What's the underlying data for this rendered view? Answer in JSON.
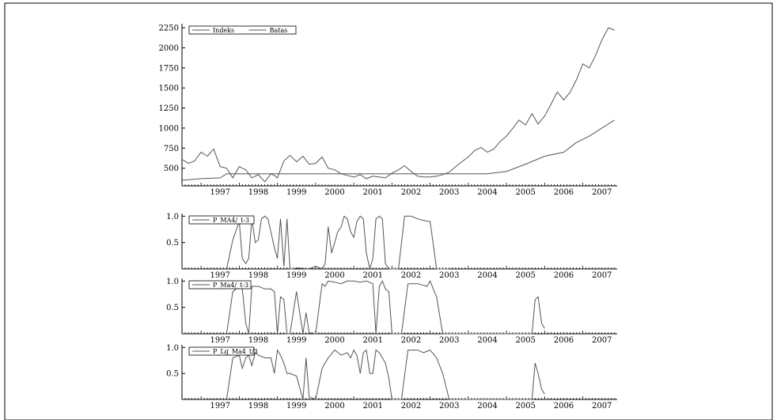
{
  "colors": {
    "line": "#555555",
    "axis": "#000000",
    "background": "#ffffff"
  },
  "chart_data": [
    {
      "type": "line",
      "title": "",
      "xlabel": "",
      "ylabel": "",
      "xlim": [
        1996.5,
        2007.9
      ],
      "ylim": [
        280,
        2300
      ],
      "yticks": [
        500,
        750,
        1000,
        1250,
        1500,
        1750,
        2000,
        2250
      ],
      "xticks": [
        "1997",
        "1998",
        "1999",
        "2000",
        "2001",
        "2002",
        "2003",
        "2004",
        "2005",
        "2006",
        "2007"
      ],
      "legend": "top-left",
      "series": [
        {
          "name": "Indeks",
          "x": [
            1996.5,
            1996.67,
            1996.83,
            1997.0,
            1997.17,
            1997.33,
            1997.5,
            1997.67,
            1997.83,
            1998.0,
            1998.08,
            1998.17,
            1998.33,
            1998.5,
            1998.67,
            1998.83,
            1998.92,
            1999.0,
            1999.17,
            1999.33,
            1999.5,
            1999.67,
            1999.83,
            2000.0,
            2000.17,
            2000.33,
            2000.5,
            2000.67,
            2000.83,
            2001.0,
            2001.17,
            2001.33,
            2001.5,
            2001.67,
            2001.83,
            2002.0,
            2002.17,
            2002.33,
            2002.5,
            2002.67,
            2002.83,
            2003.0,
            2003.17,
            2003.33,
            2003.5,
            2003.67,
            2003.83,
            2004.0,
            2004.17,
            2004.33,
            2004.5,
            2004.67,
            2004.83,
            2005.0,
            2005.17,
            2005.33,
            2005.5,
            2005.67,
            2005.83,
            2006.0,
            2006.17,
            2006.33,
            2006.5,
            2006.67,
            2006.83,
            2007.0,
            2007.17,
            2007.33,
            2007.5,
            2007.67,
            2007.83
          ],
          "values": [
            610,
            560,
            590,
            700,
            650,
            740,
            520,
            500,
            380,
            520,
            500,
            480,
            380,
            420,
            330,
            430,
            410,
            380,
            590,
            660,
            580,
            650,
            550,
            560,
            640,
            500,
            480,
            430,
            410,
            390,
            420,
            370,
            400,
            390,
            380,
            440,
            480,
            530,
            460,
            400,
            390,
            390,
            400,
            420,
            450,
            520,
            580,
            640,
            720,
            760,
            700,
            740,
            830,
            900,
            1000,
            1100,
            1040,
            1180,
            1050,
            1150,
            1300,
            1450,
            1350,
            1450,
            1600,
            1800,
            1750,
            1900,
            2100,
            2250,
            2220
          ]
        },
        {
          "name": "Batas",
          "x": [
            1996.5,
            1997.0,
            1997.5,
            1997.67,
            2003.5,
            2004.5,
            2005.0,
            2005.5,
            2006.0,
            2006.5,
            2006.83,
            2007.17,
            2007.5,
            2007.83
          ],
          "values": [
            350,
            370,
            380,
            430,
            430,
            430,
            460,
            550,
            650,
            700,
            820,
            900,
            1000,
            1100
          ]
        }
      ]
    },
    {
      "type": "line",
      "title": "",
      "xlabel": "",
      "ylabel": "",
      "xlim": [
        1996.5,
        2007.9
      ],
      "ylim": [
        0,
        1.05
      ],
      "yticks": [
        "0.5",
        "1.0"
      ],
      "xticks": [
        "1997",
        "1998",
        "1999",
        "2000",
        "2001",
        "2002",
        "2003",
        "2004",
        "2005",
        "2006",
        "2007"
      ],
      "legend": "top-left",
      "series": [
        {
          "name": "P_MA4/_t-3",
          "x": [
            1997.67,
            1997.83,
            1998.0,
            1998.08,
            1998.17,
            1998.25,
            1998.33,
            1998.42,
            1998.5,
            1998.58,
            1998.67,
            1998.75,
            1998.83,
            1998.92,
            1999.0,
            1999.08,
            1999.17,
            1999.25,
            1999.33,
            1999.42,
            1999.5,
            1999.83,
            2000.0,
            2000.17,
            2000.25,
            2000.33,
            2000.42,
            2000.5,
            2000.58,
            2000.67,
            2000.75,
            2000.83,
            2000.92,
            2001.0,
            2001.08,
            2001.17,
            2001.25,
            2001.33,
            2001.42,
            2001.5,
            2001.58,
            2001.67,
            2001.75,
            2001.83,
            2001.92,
            2002.0,
            2002.17,
            2002.33,
            2002.5,
            2002.67,
            2002.83,
            2003.0,
            2003.17,
            2003.33,
            2003.5
          ],
          "values": [
            0,
            0.55,
            0.9,
            0.2,
            0.1,
            0.2,
            0.95,
            0.5,
            0.55,
            0.95,
            1.0,
            0.95,
            0.7,
            0.4,
            0.2,
            0.95,
            0.05,
            0.95,
            0,
            0,
            0.02,
            0,
            0.05,
            0,
            0.1,
            0.8,
            0.3,
            0.5,
            0.7,
            0.8,
            1.0,
            0.95,
            0.7,
            0.6,
            0.9,
            1.0,
            0.95,
            0.3,
            0,
            0.2,
            0.95,
            1.0,
            0.95,
            0.1,
            0,
            0,
            0,
            1.0,
            1.0,
            0.95,
            0.92,
            0.9,
            0,
            0,
            0
          ]
        }
      ]
    },
    {
      "type": "line",
      "title": "",
      "xlabel": "",
      "ylabel": "",
      "xlim": [
        1996.5,
        2007.9
      ],
      "ylim": [
        0,
        1.05
      ],
      "yticks": [
        "0.5",
        "1.0"
      ],
      "xticks": [
        "1997",
        "1998",
        "1999",
        "2000",
        "2001",
        "2002",
        "2003",
        "2004",
        "2005",
        "2006",
        "2007"
      ],
      "legend": "top-left",
      "series": [
        {
          "name": "P_Ma4/_t-3",
          "x": [
            1997.67,
            1997.83,
            1998.0,
            1998.08,
            1998.17,
            1998.25,
            1998.33,
            1998.5,
            1998.67,
            1998.83,
            1998.92,
            1999.0,
            1999.08,
            1999.17,
            1999.25,
            1999.33,
            1999.5,
            1999.67,
            1999.75,
            1999.83,
            2000.0,
            2000.17,
            2000.25,
            2000.33,
            2000.5,
            2000.67,
            2000.83,
            2001.0,
            2001.17,
            2001.33,
            2001.5,
            2001.58,
            2001.67,
            2001.75,
            2001.83,
            2001.92,
            2002.0,
            2002.25,
            2002.42,
            2002.5,
            2002.67,
            2002.83,
            2002.92,
            2003.0,
            2003.08,
            2003.17,
            2003.33,
            2003.5,
            2005.67,
            2005.75,
            2005.83,
            2005.92,
            2006.0
          ],
          "values": [
            0,
            0.8,
            0.9,
            0.85,
            0.2,
            0,
            0.9,
            0.9,
            0.85,
            0.85,
            0.8,
            0,
            0.7,
            0.65,
            0,
            0,
            0.8,
            0,
            0.4,
            0.02,
            0,
            0.95,
            0.9,
            1.0,
            0.98,
            0.95,
            1.0,
            1.0,
            0.98,
            1.0,
            0.95,
            0,
            0.9,
            1.0,
            0.85,
            0.8,
            0,
            0,
            0.95,
            0.95,
            0.95,
            0.92,
            0.9,
            1.0,
            0.85,
            0.7,
            0,
            0,
            0,
            0.65,
            0.7,
            0.2,
            0.1
          ]
        }
      ]
    },
    {
      "type": "line",
      "title": "",
      "xlabel": "",
      "ylabel": "",
      "xlim": [
        1996.5,
        2007.9
      ],
      "ylim": [
        0,
        1.05
      ],
      "yticks": [
        "0.5",
        "1.0"
      ],
      "xticks": [
        "1997",
        "1998",
        "1999",
        "2000",
        "2001",
        "2002",
        "2003",
        "2004",
        "2005",
        "2006",
        "2007"
      ],
      "legend": "top-left",
      "series": [
        {
          "name": "P_Lg_Ma4_t/3",
          "x": [
            1997.67,
            1997.83,
            1998.0,
            1998.08,
            1998.17,
            1998.25,
            1998.33,
            1998.42,
            1998.5,
            1998.67,
            1998.83,
            1998.92,
            1999.0,
            1999.08,
            1999.17,
            1999.25,
            1999.33,
            1999.5,
            1999.67,
            1999.75,
            1999.83,
            2000.0,
            2000.17,
            2000.33,
            2000.5,
            2000.67,
            2000.83,
            2000.92,
            2001.0,
            2001.08,
            2001.17,
            2001.25,
            2001.33,
            2001.42,
            2001.5,
            2001.58,
            2001.67,
            2001.75,
            2001.83,
            2001.92,
            2002.0,
            2002.25,
            2002.42,
            2002.5,
            2002.67,
            2002.83,
            2003.0,
            2003.17,
            2003.33,
            2003.5,
            2005.67,
            2005.75,
            2005.83,
            2005.92,
            2006.0
          ],
          "values": [
            0,
            0.8,
            0.85,
            0.6,
            0.8,
            0.85,
            0.65,
            0.9,
            0.85,
            0.8,
            0.8,
            0.5,
            0.95,
            0.85,
            0.7,
            0.5,
            0.5,
            0.45,
            0,
            0.8,
            0.05,
            0,
            0.6,
            0.8,
            0.95,
            0.85,
            0.9,
            0.8,
            0.95,
            0.85,
            0.5,
            0.9,
            0.95,
            0.5,
            0.5,
            0.95,
            0.9,
            0.8,
            0.7,
            0.4,
            0,
            0,
            0.95,
            0.95,
            0.95,
            0.9,
            0.95,
            0.8,
            0.5,
            0,
            0,
            0.7,
            0.5,
            0.2,
            0.1
          ]
        }
      ]
    }
  ]
}
